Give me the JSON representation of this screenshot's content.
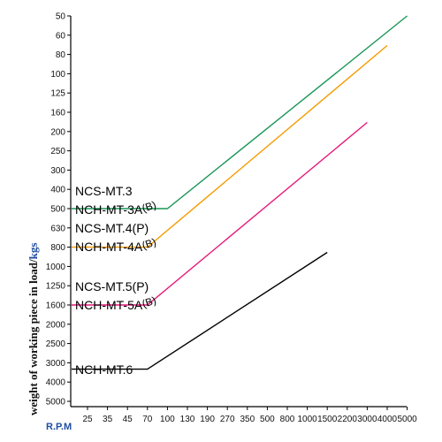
{
  "chart_data": {
    "type": "line",
    "title": "",
    "xlabel": "R.P.M",
    "ylabel": "weight of working piece in load/",
    "ylabel_unit": "kgs",
    "y_scale": "categorical, inverted (50 at top, 5000 at bottom)",
    "x_scale": "categorical (evenly spaced RPM values)",
    "categories": [
      "25",
      "35",
      "45",
      "70",
      "100",
      "130",
      "190",
      "270",
      "350",
      "500",
      "800",
      "1000",
      "1500",
      "2200",
      "3000",
      "4000",
      "5000"
    ],
    "y_ticks": [
      "50",
      "60",
      "80",
      "100",
      "125",
      "160",
      "200",
      "250",
      "300",
      "400",
      "500",
      "630",
      "800",
      "1000",
      "1250",
      "1600",
      "2000",
      "2500",
      "3000",
      "4000",
      "5000"
    ],
    "grid": false,
    "series": [
      {
        "name": "NCS-MT.3 / NCH-MT-3A(B)",
        "color": "#1a9656",
        "points": [
          [
            25,
            500
          ],
          [
            100,
            500
          ],
          [
            5000,
            50
          ]
        ]
      },
      {
        "name": "NCS-MT.4(P) / NCH-MT-4A(B)",
        "color": "#f59b00",
        "points": [
          [
            25,
            800
          ],
          [
            70,
            800
          ],
          [
            4000,
            70
          ]
        ]
      },
      {
        "name": "NCS-MT.5(P) / NCH-MT-5A(B)",
        "color": "#e6197a",
        "points": [
          [
            25,
            1600
          ],
          [
            70,
            1600
          ],
          [
            3000,
            180
          ]
        ]
      },
      {
        "name": "NCH-MT.6",
        "color": "#000000",
        "points": [
          [
            25,
            3300
          ],
          [
            70,
            3300
          ],
          [
            1500,
            850
          ]
        ]
      }
    ],
    "labels": [
      {
        "text": "NCS-MT.3",
        "suffix": ""
      },
      {
        "text": "NCH-MT-3A",
        "suffix": "(B)"
      },
      {
        "text": "NCS-MT.4(P)",
        "suffix": ""
      },
      {
        "text": "NCH-MT-4A",
        "suffix": "(B)"
      },
      {
        "text": "NCS-MT.5(P)",
        "suffix": ""
      },
      {
        "text": "NCH-MT-5A",
        "suffix": "(B)"
      },
      {
        "text": "NCH-MT.6",
        "suffix": ""
      }
    ]
  }
}
